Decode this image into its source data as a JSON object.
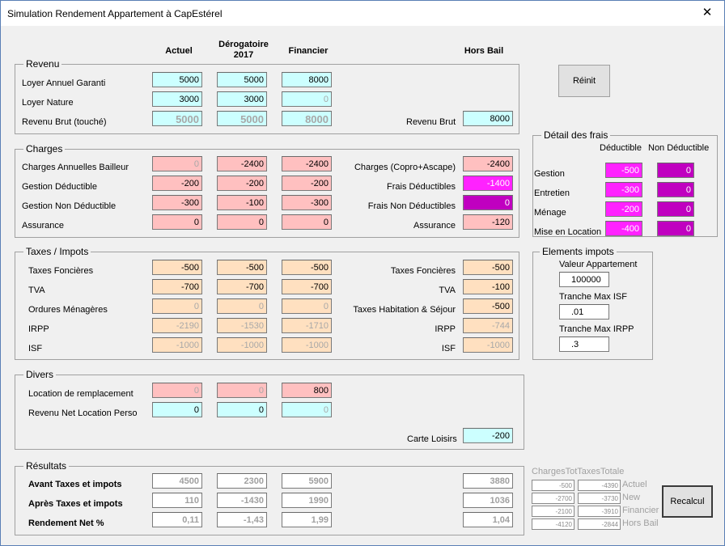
{
  "window": {
    "title": "Simulation Rendement Appartement à CapEstérel",
    "close_glyph": "✕"
  },
  "columns": {
    "actuel": "Actuel",
    "derog_line1": "Dérogatoire",
    "derog_line2": "2017",
    "financier": "Financier",
    "hors_bail": "Hors Bail"
  },
  "revenu": {
    "legend": "Revenu",
    "loyer_annuel": {
      "label": "Loyer Annuel Garanti",
      "v": [
        "5000",
        "5000",
        "8000"
      ]
    },
    "loyer_nature": {
      "label": "Loyer Nature",
      "v": [
        "3000",
        "3000",
        "0"
      ]
    },
    "revenu_brut": {
      "label": "Revenu Brut (touché)",
      "v": [
        "5000",
        "5000",
        "8000"
      ]
    },
    "right_label": "Revenu Brut",
    "right_value": "8000"
  },
  "reinit": "Réinit",
  "charges": {
    "legend": "Charges",
    "rows": [
      {
        "label": "Charges Annuelles Bailleur",
        "v": [
          "0",
          "-2400",
          "-2400"
        ],
        "rlabel": "Charges (Copro+Ascape)",
        "rv": "-2400"
      },
      {
        "label": "Gestion Déductible",
        "v": [
          "-200",
          "-200",
          "-200"
        ],
        "rlabel": "Frais Déductibles",
        "rv": "-1400"
      },
      {
        "label": "Gestion Non Déductible",
        "v": [
          "-300",
          "-100",
          "-300"
        ],
        "rlabel": "Frais Non Déductibles",
        "rv": "0"
      },
      {
        "label": "Assurance",
        "v": [
          "0",
          "0",
          "0"
        ],
        "rlabel": "Assurance",
        "rv": "-120"
      }
    ]
  },
  "frais": {
    "legend": "Détail des frais",
    "col_deductible": "Déductible",
    "col_non_deductible": "Non Déductible",
    "rows": [
      {
        "label": "Gestion",
        "d": "-500",
        "nd": "0"
      },
      {
        "label": "Entretien",
        "d": "-300",
        "nd": "0"
      },
      {
        "label": "Ménage",
        "d": "-200",
        "nd": "0"
      },
      {
        "label": "Mise en Location",
        "d": "-400",
        "nd": "0"
      }
    ]
  },
  "taxes": {
    "legend": "Taxes / Impots",
    "rows": [
      {
        "label": "Taxes Foncières",
        "v": [
          "-500",
          "-500",
          "-500"
        ],
        "rlabel": "Taxes Foncières",
        "rv": "-500"
      },
      {
        "label": "TVA",
        "v": [
          "-700",
          "-700",
          "-700"
        ],
        "rlabel": "TVA",
        "rv": "-100"
      },
      {
        "label": "Ordures Ménagères",
        "v": [
          "0",
          "0",
          "0"
        ],
        "rlabel": "Taxes Habitation & Séjour",
        "rv": "-500"
      },
      {
        "label": "IRPP",
        "v": [
          "-2190",
          "-1530",
          "-1710"
        ],
        "rlabel": "IRPP",
        "rv": "-744"
      },
      {
        "label": "ISF",
        "v": [
          "-1000",
          "-1000",
          "-1000"
        ],
        "rlabel": "ISF",
        "rv": "-1000"
      }
    ]
  },
  "impots": {
    "legend": "Elements impots",
    "valeur_label": "Valeur Appartement",
    "valeur": "100000",
    "isf_label": "Tranche Max ISF",
    "isf": ".01",
    "irpp_label": "Tranche Max IRPP",
    "irpp": ".3"
  },
  "divers": {
    "legend": "Divers",
    "location": {
      "label": "Location de remplacement",
      "v": [
        "0",
        "0",
        "800"
      ]
    },
    "revenu_net": {
      "label": "Revenu Net Location Perso",
      "v": [
        "0",
        "0",
        "0"
      ]
    },
    "carte_label": "Carte Loisirs",
    "carte": "-200"
  },
  "resultats": {
    "legend": "Résultats",
    "avant": {
      "label": "Avant Taxes et impots",
      "v": [
        "4500",
        "2300",
        "5900"
      ],
      "hb": "3880"
    },
    "apres": {
      "label": "Après Taxes et impots",
      "v": [
        "110",
        "-1430",
        "1990"
      ],
      "hb": "1036"
    },
    "rendement": {
      "label": "Rendement Net %",
      "v": [
        "0,11",
        "-1,43",
        "1,99"
      ],
      "hb": "1,04"
    }
  },
  "recap": {
    "header": "ChargesTotTaxesTotale",
    "rows": [
      {
        "c": "-500",
        "t": "-4390",
        "label": "Actuel"
      },
      {
        "c": "-2700",
        "t": "-3730",
        "label": "New"
      },
      {
        "c": "-2100",
        "t": "-3910",
        "label": "Financier"
      },
      {
        "c": "-4120",
        "t": "-2844",
        "label": "Hors Bail"
      }
    ]
  },
  "recalcul": "Recalcul",
  "colors": {
    "cyan": "#ccffff",
    "pink": "#ffc0c0",
    "peach": "#ffe0c0",
    "magenta": "#ff22ff",
    "purple": "#c000c0"
  }
}
